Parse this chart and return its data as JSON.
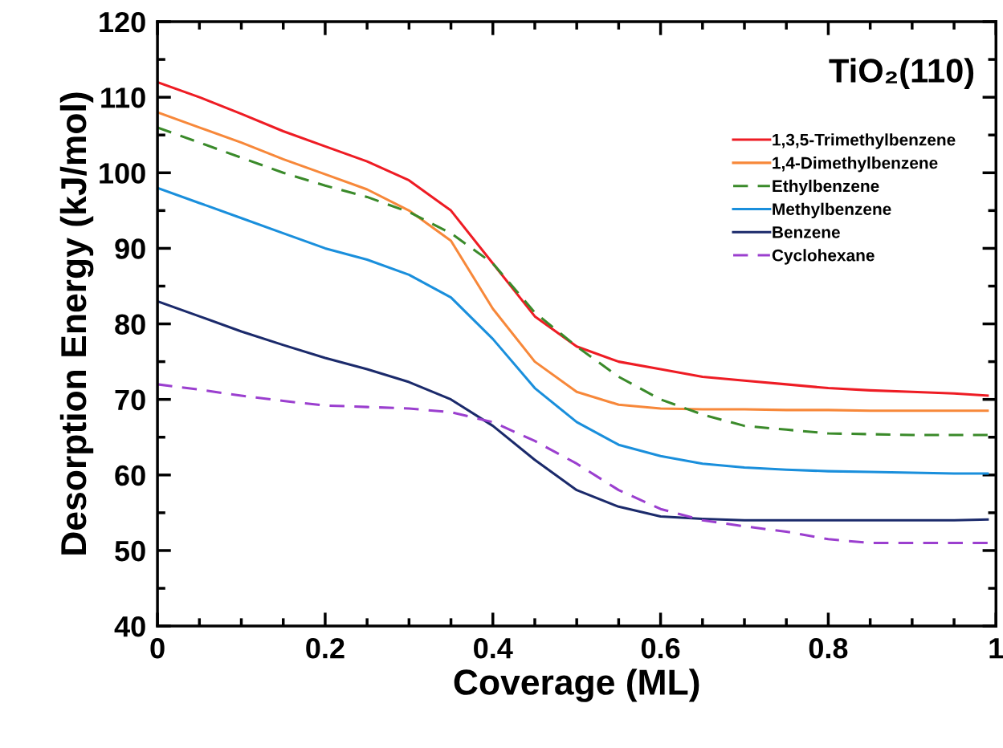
{
  "chart_data": {
    "type": "line",
    "xlabel": "Coverage (ML)",
    "ylabel": "Desorption Energy (kJ/mol)",
    "annotations": [
      "TiO₂(110)"
    ],
    "xlim": [
      0,
      1
    ],
    "ylim": [
      40,
      120
    ],
    "xticks": [
      0,
      0.2,
      0.4,
      0.6,
      0.8,
      1
    ],
    "yticks": [
      40,
      50,
      60,
      70,
      80,
      90,
      100,
      110,
      120
    ],
    "grid": false,
    "legend": "top right",
    "marker": "none",
    "x": [
      0,
      0.05,
      0.1,
      0.15,
      0.2,
      0.25,
      0.3,
      0.35,
      0.4,
      0.45,
      0.5,
      0.55,
      0.6,
      0.65,
      0.7,
      0.75,
      0.8,
      0.85,
      0.9,
      0.95,
      0.99
    ],
    "series": [
      {
        "name": "1,3,5-Trimethylbenzene",
        "color": "#ee1c24",
        "line_style": "solid",
        "values": [
          112,
          110,
          107.8,
          105.5,
          103.5,
          101.5,
          99,
          95,
          88,
          81,
          77,
          75,
          74,
          73,
          72.5,
          72,
          71.5,
          71.2,
          71,
          70.8,
          70.5
        ]
      },
      {
        "name": "1,4-Dimethylbenzene",
        "color": "#f7883a",
        "line_style": "solid",
        "values": [
          108,
          106,
          104,
          101.8,
          99.8,
          97.8,
          95,
          91,
          82,
          75,
          71,
          69.3,
          68.8,
          68.7,
          68.7,
          68.6,
          68.6,
          68.5,
          68.5,
          68.5,
          68.5
        ]
      },
      {
        "name": "Ethylbenzene",
        "color": "#3a8a2a",
        "line_style": "dashed",
        "values": [
          106,
          104,
          102,
          100,
          98.3,
          96.8,
          94.8,
          92,
          88,
          81.5,
          77,
          73,
          70,
          68,
          66.5,
          66,
          65.5,
          65.4,
          65.3,
          65.3,
          65.3
        ]
      },
      {
        "name": "Methylbenzene",
        "color": "#1a8fdc",
        "line_style": "solid",
        "values": [
          98,
          96,
          94,
          92,
          90,
          88.5,
          86.5,
          83.5,
          78,
          71.5,
          67,
          64,
          62.5,
          61.5,
          61,
          60.7,
          60.5,
          60.4,
          60.3,
          60.2,
          60.2
        ]
      },
      {
        "name": "Benzene",
        "color": "#1b2a6b",
        "line_style": "solid",
        "values": [
          83,
          81,
          79,
          77.2,
          75.5,
          74,
          72.3,
          70,
          66.5,
          62,
          58,
          55.8,
          54.5,
          54.2,
          54,
          54,
          54,
          54,
          54,
          54,
          54.1
        ]
      },
      {
        "name": "Cyclohexane",
        "color": "#9b3fcf",
        "line_style": "dashed",
        "values": [
          72,
          71.3,
          70.5,
          69.8,
          69.2,
          69,
          68.8,
          68.3,
          67,
          64.5,
          61.5,
          58,
          55.5,
          54,
          53.2,
          52.5,
          51.5,
          51,
          51,
          51,
          51
        ]
      }
    ]
  }
}
